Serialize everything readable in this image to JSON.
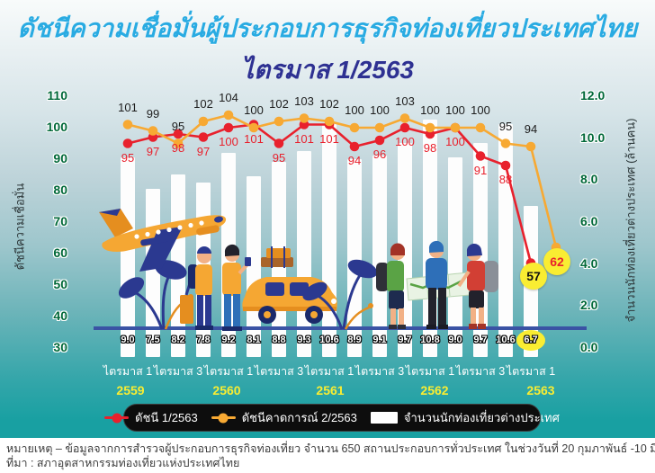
{
  "title": {
    "line1": "ดัชนีความเชื่อมั่นผู้ประกอบการธุรกิจท่องเที่ยวประเทศไทย",
    "line2": "ไตรมาส 1/2563"
  },
  "axes": {
    "left": {
      "title": "ดัชนีความเชื่อมั่น",
      "ticks": [
        110,
        100,
        90,
        80,
        70,
        60,
        50,
        40,
        30
      ]
    },
    "right": {
      "title": "จำนวนนักท่องเที่ยวต่างประเทศ (ล้านคน)",
      "ticks": [
        "12.0",
        "10.0",
        "8.0",
        "6.0",
        "4.0",
        "2.0",
        "0.0"
      ]
    }
  },
  "x_axis": {
    "quarter_labels": [
      "ไตรมาส 1",
      "ไตรมาส 3",
      "ไตรมาส 1",
      "ไตรมาส 3",
      "ไตรมาส 1",
      "ไตรมาส 3",
      "ไตรมาส 1",
      "ไตรมาส 3",
      "ไตรมาส 1"
    ],
    "years": [
      "2559",
      "2560",
      "2561",
      "2562",
      "2563"
    ]
  },
  "legend": {
    "items": [
      {
        "label": "ดัชนี 1/2563",
        "marker": "red-line-dot"
      },
      {
        "label": "ดัชนีคาดการณ์ 2/2563",
        "marker": "orange-line-dot"
      },
      {
        "label": "จำนวนนักท่องเที่ยวต่างประเทศ",
        "marker": "white-bar"
      }
    ]
  },
  "footer": {
    "note": "หมายเหตุ – ข้อมูลจากการสำรวจผู้ประกอบการธุรกิจท่องเที่ยว จำนวน 650 สถานประกอบการทั่วประเทศ ในช่วงวันที่ 20 กุมภาพันธ์ -10 มีนาคม 2563",
    "source": "ที่มา : สภาอุตสาหกรรมท่องเที่ยวแห่งประเทศไทย"
  },
  "colors": {
    "title_light_blue": "#29abe2",
    "title_dark_blue": "#2e3192",
    "axis_green": "#006838",
    "index_red": "#e8212d",
    "forecast_orange": "#f7a933",
    "bar_white": "#fdfdfd",
    "baseline_blue": "#3a53a4",
    "highlight_yellow": "#f9ed32",
    "background_teal": "#17a0a2"
  },
  "chart_data": {
    "type": "mixed bar + 2 lines (dual axis)",
    "categories": [
      "ไตรมาส 1/2559",
      "ไตรมาส 2/2559",
      "ไตรมาส 3/2559",
      "ไตรมาส 4/2559",
      "ไตรมาส 1/2560",
      "ไตรมาส 2/2560",
      "ไตรมาส 3/2560",
      "ไตรมาส 4/2560",
      "ไตรมาส 1/2561",
      "ไตรมาส 2/2561",
      "ไตรมาส 3/2561",
      "ไตรมาส 4/2561",
      "ไตรมาส 1/2562",
      "ไตรมาส 2/2562",
      "ไตรมาส 3/2562",
      "ไตรมาส 4/2562",
      "ไตรมาส 1/2563",
      "ไตรมาส 2/2563"
    ],
    "series": [
      {
        "name": "ดัชนี 1/2563",
        "type": "line",
        "axis": "left",
        "color": "#e8212d",
        "values": [
          95,
          97,
          98,
          97,
          100,
          101,
          95,
          101,
          101,
          94,
          96,
          100,
          98,
          100,
          91,
          88,
          57
        ]
      },
      {
        "name": "ดัชนีคาดการณ์ 2/2563",
        "type": "line",
        "axis": "left",
        "color": "#f7a933",
        "values": [
          101,
          99,
          95,
          102,
          104,
          100,
          102,
          103,
          102,
          100,
          100,
          103,
          100,
          100,
          100,
          95,
          94,
          62
        ]
      },
      {
        "name": "จำนวนนักท่องเที่ยวต่างประเทศ",
        "type": "bar",
        "axis": "right",
        "color": "#ffffff",
        "values": [
          9.0,
          7.5,
          8.2,
          7.8,
          9.2,
          8.1,
          8.8,
          9.3,
          10.6,
          8.9,
          9.1,
          9.7,
          10.8,
          9.0,
          9.7,
          10.6,
          6.7
        ]
      }
    ],
    "left_ylim": [
      30,
      110
    ],
    "right_ylim": [
      0.0,
      12.0
    ],
    "grid": false,
    "legend_position": "bottom",
    "highlights": {
      "latest_index": 57,
      "forecast_index": 62,
      "latest_tourists": 6.7
    }
  }
}
